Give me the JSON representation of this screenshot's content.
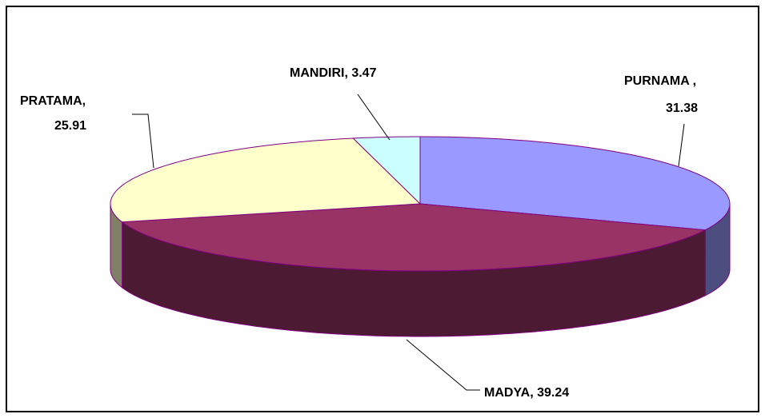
{
  "chart_data": {
    "type": "pie",
    "values": [
      31.38,
      39.24,
      25.91,
      3.47
    ],
    "value_labels": [
      [
        "PURNAMA ,",
        "31.38"
      ],
      [
        "MADYA, 39.24"
      ],
      [
        "PRATAMA,",
        "25.91"
      ],
      [
        "MANDIRI, 3.47"
      ]
    ],
    "colors": [
      "#9999ff",
      "#993366",
      "#ffffcc",
      "#ccffff"
    ],
    "side_colors": [
      "#4d4d80",
      "#4d1a33",
      "#808066",
      "#668080"
    ]
  }
}
